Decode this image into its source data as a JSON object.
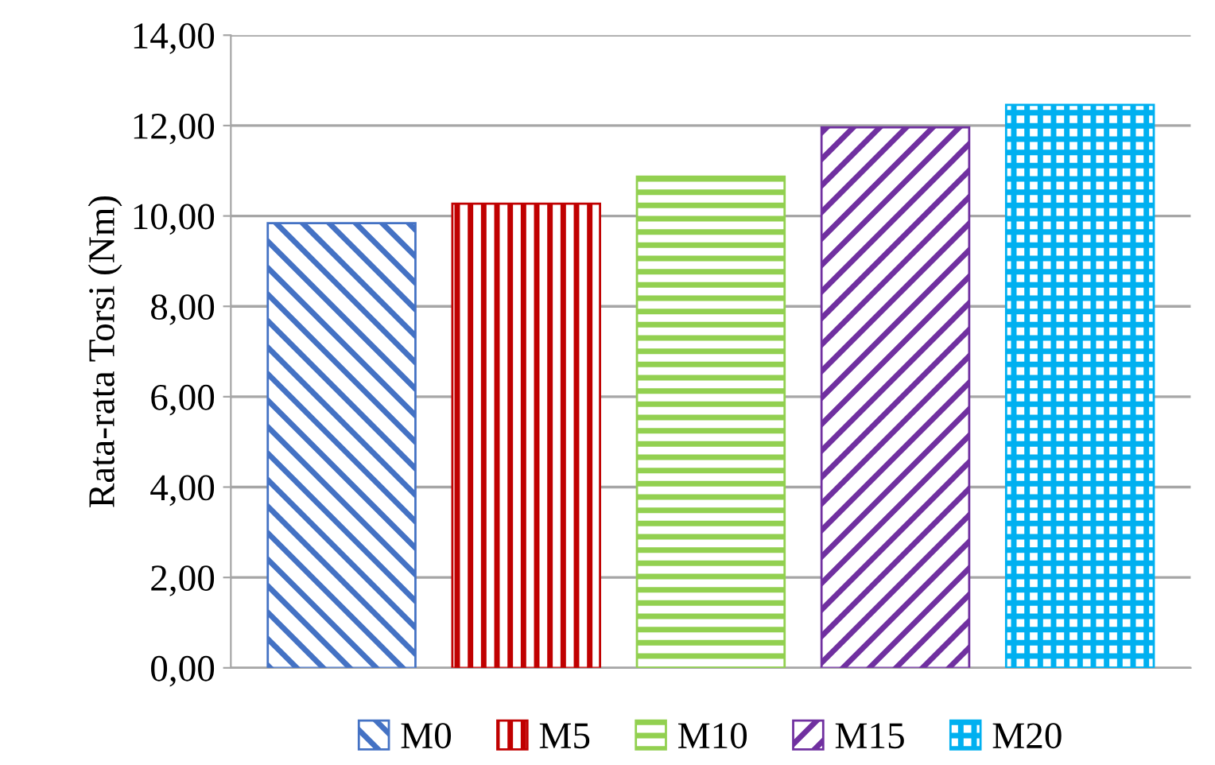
{
  "chart_data": {
    "type": "bar",
    "ylabel": "Rata-rata Torsi (Nm)",
    "categories": [
      null,
      null,
      null,
      null,
      null
    ],
    "series": [
      {
        "name": "M0",
        "color": "#4472c4",
        "values": [
          9.84,
          null,
          null,
          null,
          null
        ]
      },
      {
        "name": "M5",
        "color": "#c00000",
        "values": [
          null,
          10.27,
          null,
          null,
          null
        ]
      },
      {
        "name": "M10",
        "color": "#92d050",
        "values": [
          null,
          null,
          10.87,
          null,
          null
        ]
      },
      {
        "name": "M15",
        "color": "#7030a0",
        "values": [
          null,
          null,
          null,
          11.96,
          null
        ]
      },
      {
        "name": "M20",
        "color": "#00b0f0",
        "values": [
          null,
          null,
          null,
          null,
          12.46
        ]
      }
    ],
    "ylim": [
      0,
      14
    ],
    "yticks": [
      {
        "value": 0,
        "label": "0,00"
      },
      {
        "value": 2,
        "label": "2,00"
      },
      {
        "value": 4,
        "label": "4,00"
      },
      {
        "value": 6,
        "label": "6,00"
      },
      {
        "value": 8,
        "label": "8,00"
      },
      {
        "value": 10,
        "label": "10,00"
      },
      {
        "value": 12,
        "label": "12,00"
      },
      {
        "value": 14,
        "label": "14,00"
      }
    ],
    "grid": "y",
    "legend": "bottom"
  }
}
